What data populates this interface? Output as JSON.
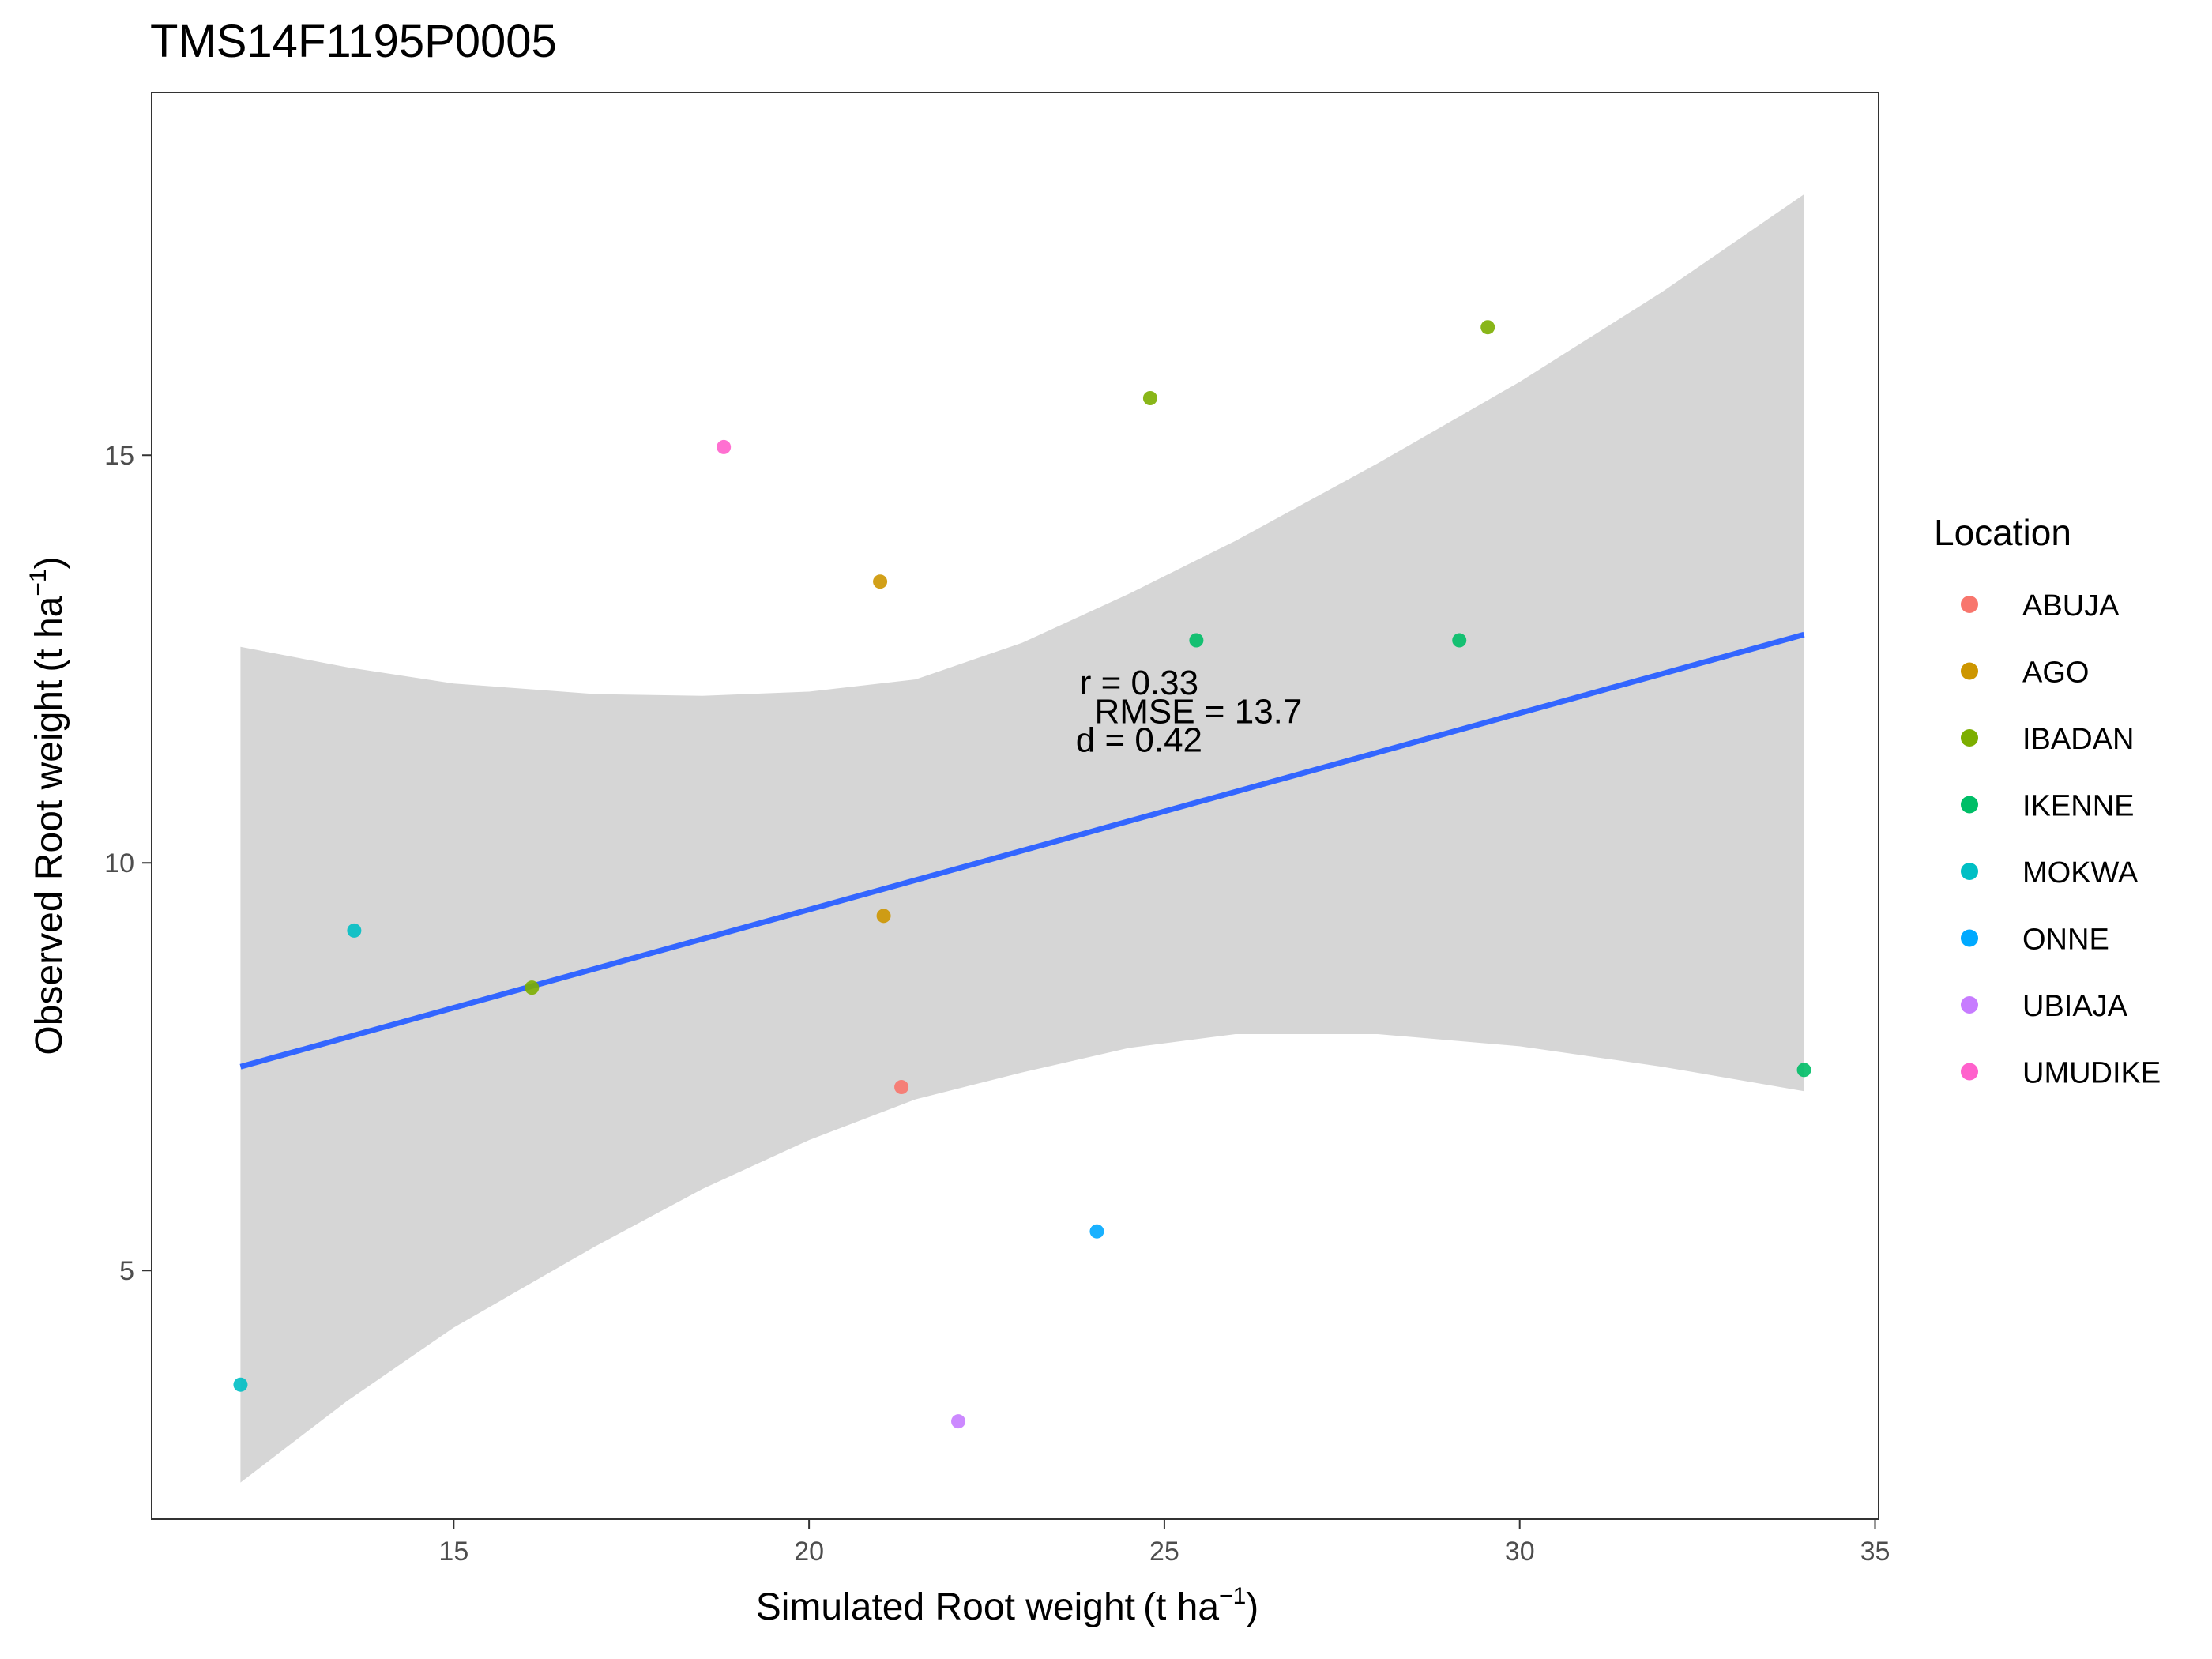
{
  "chart_data": {
    "type": "scatter",
    "title": "TMS14F1195P0005",
    "xlabel": "Simulated Root weight",
    "xlabel_unit_base": "t ha",
    "xlabel_unit_exp": "−1",
    "ylabel": "Observed Root weight",
    "ylabel_unit_base": "t ha",
    "ylabel_unit_exp": "−1",
    "xlim": [
      10.75,
      35.05
    ],
    "ylim": [
      1.95,
      19.45
    ],
    "x_ticks": [
      15,
      20,
      25,
      30,
      35
    ],
    "y_ticks": [
      5,
      10,
      15
    ],
    "x_tick_labels": [
      "15",
      "20",
      "25",
      "30",
      "35"
    ],
    "y_tick_labels": [
      "5",
      "10",
      "15"
    ],
    "grid": false,
    "legend": {
      "title": "Location",
      "placement": "right",
      "entries": [
        {
          "name": "ABUJA",
          "color": "#F8766D"
        },
        {
          "name": "AGO",
          "color": "#CD9600"
        },
        {
          "name": "IBADAN",
          "color": "#7CAE00"
        },
        {
          "name": "IKENNE",
          "color": "#00BE67"
        },
        {
          "name": "MOKWA",
          "color": "#00BFC4"
        },
        {
          "name": "ONNE",
          "color": "#00A9FF"
        },
        {
          "name": "UBIAJA",
          "color": "#C77CFF"
        },
        {
          "name": "UMUDIKE",
          "color": "#FF61CC"
        }
      ]
    },
    "series": [
      {
        "name": "ABUJA",
        "color": "#F8766D",
        "points": [
          {
            "x": 21.3,
            "y": 7.25
          }
        ]
      },
      {
        "name": "AGO",
        "color": "#CD9600",
        "points": [
          {
            "x": 21.0,
            "y": 13.45
          },
          {
            "x": 21.05,
            "y": 9.35
          }
        ]
      },
      {
        "name": "IBADAN",
        "color": "#7CAE00",
        "points": [
          {
            "x": 24.8,
            "y": 15.7
          },
          {
            "x": 29.55,
            "y": 16.57
          },
          {
            "x": 16.1,
            "y": 8.47
          }
        ]
      },
      {
        "name": "IKENNE",
        "color": "#00BE67",
        "points": [
          {
            "x": 25.45,
            "y": 12.73
          },
          {
            "x": 29.15,
            "y": 12.73
          },
          {
            "x": 34.0,
            "y": 7.46
          }
        ]
      },
      {
        "name": "MOKWA",
        "color": "#00BFC4",
        "points": [
          {
            "x": 13.6,
            "y": 9.17
          },
          {
            "x": 12.0,
            "y": 3.6
          }
        ]
      },
      {
        "name": "ONNE",
        "color": "#00A9FF",
        "points": [
          {
            "x": 24.05,
            "y": 5.48
          }
        ]
      },
      {
        "name": "UBIAJA",
        "color": "#C77CFF",
        "points": [
          {
            "x": 22.1,
            "y": 3.15
          }
        ]
      },
      {
        "name": "UMUDIKE",
        "color": "#FF61CC",
        "points": [
          {
            "x": 18.8,
            "y": 15.1
          }
        ]
      }
    ],
    "fit_line": {
      "color": "#3366FF",
      "points": [
        {
          "x": 12.0,
          "y": 7.5
        },
        {
          "x": 34.0,
          "y": 12.8
        }
      ]
    },
    "confidence_band": {
      "color": "#d6d6d6",
      "upper": [
        {
          "x": 12.0,
          "y": 12.65
        },
        {
          "x": 13.5,
          "y": 12.4
        },
        {
          "x": 15.0,
          "y": 12.2
        },
        {
          "x": 17.0,
          "y": 12.07
        },
        {
          "x": 18.5,
          "y": 12.05
        },
        {
          "x": 20.0,
          "y": 12.1
        },
        {
          "x": 21.5,
          "y": 12.25
        },
        {
          "x": 23.0,
          "y": 12.7
        },
        {
          "x": 24.5,
          "y": 13.3
        },
        {
          "x": 26.0,
          "y": 13.95
        },
        {
          "x": 28.0,
          "y": 14.9
        },
        {
          "x": 30.0,
          "y": 15.9
        },
        {
          "x": 32.0,
          "y": 17.0
        },
        {
          "x": 34.0,
          "y": 18.2
        }
      ],
      "lower": [
        {
          "x": 34.0,
          "y": 7.2
        },
        {
          "x": 32.0,
          "y": 7.5
        },
        {
          "x": 30.0,
          "y": 7.75
        },
        {
          "x": 28.0,
          "y": 7.9
        },
        {
          "x": 26.0,
          "y": 7.9
        },
        {
          "x": 24.5,
          "y": 7.73
        },
        {
          "x": 23.0,
          "y": 7.43
        },
        {
          "x": 21.5,
          "y": 7.1
        },
        {
          "x": 20.0,
          "y": 6.6
        },
        {
          "x": 18.5,
          "y": 6.0
        },
        {
          "x": 17.0,
          "y": 5.3
        },
        {
          "x": 15.0,
          "y": 4.3
        },
        {
          "x": 13.5,
          "y": 3.4
        },
        {
          "x": 12.0,
          "y": 2.4
        }
      ]
    },
    "annotations": [
      {
        "text": "r = 0.33",
        "x": 25.0,
        "y": 12.2
      },
      {
        "text": "RMSE = 13.7",
        "x": 25.0,
        "y": 11.85
      },
      {
        "text": "d = 0.42",
        "x": 25.0,
        "y": 11.5
      }
    ]
  }
}
